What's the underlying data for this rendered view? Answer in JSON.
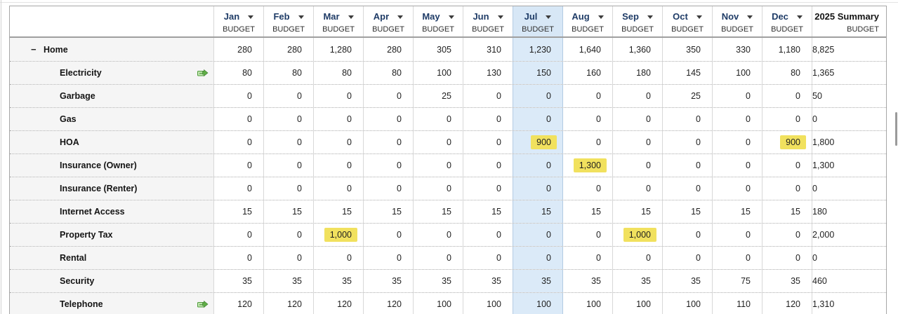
{
  "page": {
    "background": "#ffffff"
  },
  "icons": {
    "collapse": "−",
    "dropdown": "down-triangle",
    "recurring_transaction": "green-money-transfer"
  },
  "table": {
    "sub_label": "BUDGET",
    "collapse_glyph": "−",
    "months": [
      {
        "label": "Jan"
      },
      {
        "label": "Feb"
      },
      {
        "label": "Mar"
      },
      {
        "label": "Apr"
      },
      {
        "label": "May"
      },
      {
        "label": "Jun"
      },
      {
        "label": "Jul",
        "current": true
      },
      {
        "label": "Aug"
      },
      {
        "label": "Sep"
      },
      {
        "label": "Oct"
      },
      {
        "label": "Nov"
      },
      {
        "label": "Dec"
      }
    ],
    "summary_column": {
      "label": "2025 Summary",
      "sub_label": "BUDGET"
    },
    "rows": [
      {
        "label": "Home",
        "level": 0,
        "collapsible": true,
        "linked_icon": false,
        "values": [
          "280",
          "280",
          "1,280",
          "280",
          "305",
          "310",
          "1,230",
          "1,640",
          "1,360",
          "350",
          "330",
          "1,180"
        ],
        "summary": "8,825",
        "highlight_cols": []
      },
      {
        "label": "Electricity",
        "level": 1,
        "collapsible": false,
        "linked_icon": true,
        "values": [
          "80",
          "80",
          "80",
          "80",
          "100",
          "130",
          "150",
          "160",
          "180",
          "145",
          "100",
          "80"
        ],
        "summary": "1,365",
        "highlight_cols": []
      },
      {
        "label": "Garbage",
        "level": 1,
        "collapsible": false,
        "linked_icon": false,
        "values": [
          "0",
          "0",
          "0",
          "0",
          "25",
          "0",
          "0",
          "0",
          "0",
          "25",
          "0",
          "0"
        ],
        "summary": "50",
        "highlight_cols": []
      },
      {
        "label": "Gas",
        "level": 1,
        "collapsible": false,
        "linked_icon": false,
        "values": [
          "0",
          "0",
          "0",
          "0",
          "0",
          "0",
          "0",
          "0",
          "0",
          "0",
          "0",
          "0"
        ],
        "summary": "0",
        "highlight_cols": []
      },
      {
        "label": "HOA",
        "level": 1,
        "collapsible": false,
        "linked_icon": false,
        "values": [
          "0",
          "0",
          "0",
          "0",
          "0",
          "0",
          "900",
          "0",
          "0",
          "0",
          "0",
          "900"
        ],
        "summary": "1,800",
        "highlight_cols": [
          6,
          11
        ]
      },
      {
        "label": "Insurance (Owner)",
        "level": 1,
        "collapsible": false,
        "linked_icon": false,
        "values": [
          "0",
          "0",
          "0",
          "0",
          "0",
          "0",
          "0",
          "1,300",
          "0",
          "0",
          "0",
          "0"
        ],
        "summary": "1,300",
        "highlight_cols": [
          7
        ]
      },
      {
        "label": "Insurance (Renter)",
        "level": 1,
        "collapsible": false,
        "linked_icon": false,
        "values": [
          "0",
          "0",
          "0",
          "0",
          "0",
          "0",
          "0",
          "0",
          "0",
          "0",
          "0",
          "0"
        ],
        "summary": "0",
        "highlight_cols": []
      },
      {
        "label": "Internet Access",
        "level": 1,
        "collapsible": false,
        "linked_icon": false,
        "values": [
          "15",
          "15",
          "15",
          "15",
          "15",
          "15",
          "15",
          "15",
          "15",
          "15",
          "15",
          "15"
        ],
        "summary": "180",
        "highlight_cols": []
      },
      {
        "label": "Property Tax",
        "level": 1,
        "collapsible": false,
        "linked_icon": false,
        "values": [
          "0",
          "0",
          "1,000",
          "0",
          "0",
          "0",
          "0",
          "0",
          "1,000",
          "0",
          "0",
          "0"
        ],
        "summary": "2,000",
        "highlight_cols": [
          2,
          8
        ]
      },
      {
        "label": "Rental",
        "level": 1,
        "collapsible": false,
        "linked_icon": false,
        "values": [
          "0",
          "0",
          "0",
          "0",
          "0",
          "0",
          "0",
          "0",
          "0",
          "0",
          "0",
          "0"
        ],
        "summary": "0",
        "highlight_cols": []
      },
      {
        "label": "Security",
        "level": 1,
        "collapsible": false,
        "linked_icon": false,
        "values": [
          "35",
          "35",
          "35",
          "35",
          "35",
          "35",
          "35",
          "35",
          "35",
          "35",
          "75",
          "35"
        ],
        "summary": "460",
        "highlight_cols": []
      },
      {
        "label": "Telephone",
        "level": 1,
        "collapsible": false,
        "linked_icon": true,
        "values": [
          "120",
          "120",
          "120",
          "120",
          "100",
          "100",
          "100",
          "100",
          "100",
          "100",
          "110",
          "120"
        ],
        "summary": "1,310",
        "highlight_cols": []
      }
    ],
    "colors": {
      "current_month_column": "#dbeaf8",
      "current_month_header": "#d7e7f6",
      "cell_highlight": "#f1e15e",
      "month_header_text": "#1f3c67",
      "label_column_bg": "#f5f5f5",
      "recurring_icon_green": "#4f9d3c"
    }
  }
}
